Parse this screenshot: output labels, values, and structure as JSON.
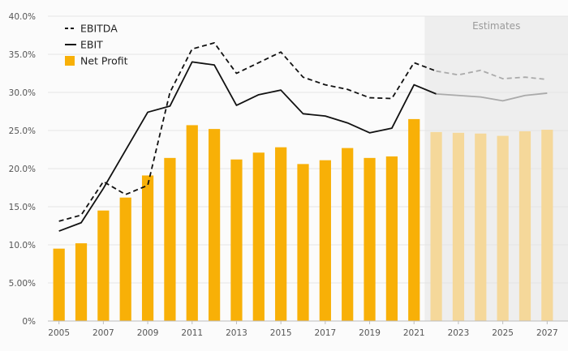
{
  "chart_data": {
    "type": "bar",
    "title": "",
    "xlabel": "",
    "ylabel": "",
    "ylim": [
      0,
      40
    ],
    "y_ticks": [
      0,
      5,
      10,
      15,
      20,
      25,
      30,
      35,
      40
    ],
    "y_tick_labels": [
      "0%",
      "5.00%",
      "10.0%",
      "15.0%",
      "20.0%",
      "25.0%",
      "30.0%",
      "35.0%",
      "40.0%"
    ],
    "x_tick_labels": [
      "2005",
      "2007",
      "2009",
      "2011",
      "2013",
      "2015",
      "2017",
      "2019",
      "2021",
      "2023",
      "2025",
      "2027"
    ],
    "categories": [
      "2005",
      "2006",
      "2007",
      "2008",
      "2009",
      "2010",
      "2011",
      "2012",
      "2013",
      "2014",
      "2015",
      "2016",
      "2017",
      "2018",
      "2019",
      "2020",
      "2021",
      "2022",
      "2023",
      "2024",
      "2025",
      "2026",
      "2027"
    ],
    "estimates_label": "Estimates",
    "estimates_start": "2022",
    "legend_position": "top-left",
    "grid": true,
    "series": [
      {
        "name": "EBITDA",
        "kind": "line",
        "style": "dashed",
        "color": "#111111",
        "estimate_color": "#aaaaaa",
        "values": [
          13.1,
          13.9,
          18.3,
          16.6,
          17.8,
          30.0,
          35.7,
          36.5,
          32.5,
          33.9,
          35.3,
          32.0,
          31.0,
          30.4,
          29.3,
          29.2,
          33.9,
          32.8,
          32.3,
          32.9,
          31.8,
          32.0,
          31.7
        ]
      },
      {
        "name": "EBIT",
        "kind": "line",
        "style": "solid",
        "color": "#111111",
        "estimate_color": "#aaaaaa",
        "values": [
          11.8,
          12.9,
          17.4,
          22.4,
          27.4,
          28.2,
          34.0,
          33.6,
          28.3,
          29.7,
          30.3,
          27.2,
          26.9,
          26.0,
          24.7,
          25.3,
          31.0,
          29.8,
          29.6,
          29.4,
          28.9,
          29.6,
          29.9
        ]
      },
      {
        "name": "Net Profit",
        "kind": "bar",
        "color": "#f8b007",
        "estimate_color": "#f5d89a",
        "values": [
          9.5,
          10.2,
          14.5,
          16.2,
          19.1,
          21.4,
          25.7,
          25.2,
          21.2,
          22.1,
          22.8,
          20.6,
          21.1,
          22.7,
          21.4,
          21.6,
          26.5,
          24.8,
          24.7,
          24.6,
          24.3,
          24.9,
          25.1
        ]
      }
    ]
  }
}
